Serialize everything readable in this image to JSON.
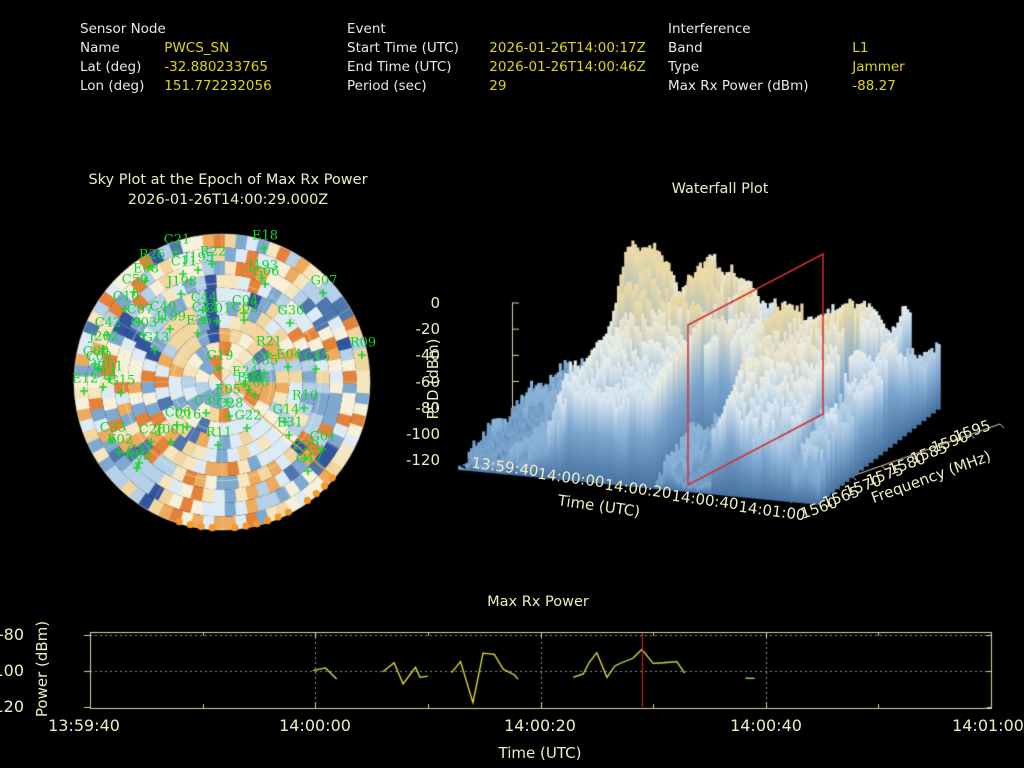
{
  "header": {
    "sensor": {
      "title": "Sensor Node",
      "rows": [
        {
          "label": "Name",
          "value": "PWCS_SN"
        },
        {
          "label": "Lat (deg)",
          "value": "-32.880233765"
        },
        {
          "label": "Lon (deg)",
          "value": "151.772232056"
        }
      ]
    },
    "event": {
      "title": "Event",
      "rows": [
        {
          "label": "Start Time (UTC)",
          "value": "2026-01-26T14:00:17Z"
        },
        {
          "label": "End Time (UTC)",
          "value": "2026-01-26T14:00:46Z"
        },
        {
          "label": "Period (sec)",
          "value": "29"
        }
      ]
    },
    "interference": {
      "title": "Interference",
      "rows": [
        {
          "label": "Band",
          "value": "L1"
        },
        {
          "label": "Type",
          "value": "Jammer"
        },
        {
          "label": "Max Rx Power (dBm)",
          "value": "-88.27"
        }
      ]
    }
  },
  "sky_plot": {
    "title": "Sky Plot at the Epoch of Max Rx Power",
    "epoch": "2026-01-26T14:00:29.000Z"
  },
  "waterfall": {
    "title": "Waterfall Plot",
    "psd_label": "PSD (dBm)",
    "time_label": "Time (UTC)",
    "freq_label": "Frequency (MHz)",
    "psd_ticks": [
      "0",
      "-20",
      "-40",
      "-60",
      "-80",
      "-100",
      "-120"
    ],
    "time_ticks": [
      "13:59:40",
      "14:00:00",
      "14:00:20",
      "14:00:40",
      "14:01:00"
    ],
    "freq_ticks": [
      "1560",
      "1565",
      "1570",
      "1575",
      "1580",
      "1585",
      "1590",
      "1595"
    ]
  },
  "chart_data": [
    {
      "type": "line",
      "title": "Max Rx Power",
      "xlabel": "Time (UTC)",
      "ylabel": "Power (dBm)",
      "x_tick_labels": [
        "13:59:40",
        "14:00:00",
        "14:00:20",
        "14:00:40",
        "14:01:00"
      ],
      "x_range_seconds": [
        0,
        80
      ],
      "yticks": [
        -80,
        -100,
        -120
      ],
      "ylim": [
        -120,
        -80
      ],
      "red_marker_seconds": 49,
      "red_marker_time": "14:00:29",
      "max_value_dbm": -88.27,
      "segments_t_dbm": [
        [
          [
            19.8,
            -100.1
          ],
          [
            20.9,
            -98.6
          ],
          [
            21.9,
            -104.7
          ]
        ],
        [
          [
            26.0,
            -100.7
          ],
          [
            27.0,
            -95.7
          ],
          [
            27.8,
            -107.5
          ],
          [
            28.9,
            -98.2
          ],
          [
            29.3,
            -103.8
          ],
          [
            30.0,
            -103.1
          ]
        ],
        [
          [
            32.1,
            -101.2
          ],
          [
            32.9,
            -95.1
          ],
          [
            34.0,
            -117.9
          ],
          [
            34.9,
            -90.4
          ],
          [
            35.9,
            -91.0
          ],
          [
            36.7,
            -99.3
          ],
          [
            37.7,
            -102.5
          ],
          [
            38.0,
            -104.9
          ]
        ],
        [
          [
            42.9,
            -103.8
          ],
          [
            43.8,
            -101.9
          ],
          [
            44.3,
            -95.7
          ],
          [
            45.0,
            -90.1
          ],
          [
            45.9,
            -103.8
          ],
          [
            46.6,
            -97.5
          ],
          [
            47.2,
            -95.7
          ],
          [
            48.2,
            -93.2
          ],
          [
            49.0,
            -88.3
          ],
          [
            50.0,
            -96.0
          ],
          [
            50.9,
            -95.7
          ],
          [
            52.1,
            -95.1
          ],
          [
            52.8,
            -101.5
          ]
        ],
        [
          [
            58.2,
            -104.2
          ],
          [
            59.0,
            -104.4
          ]
        ]
      ]
    },
    {
      "type": "surface",
      "title": "Waterfall Plot",
      "xlabel": "Time (UTC)",
      "ylabel": "Frequency (MHz)",
      "zlabel": "PSD (dBm)",
      "time_range": [
        "13:59:40",
        "14:01:00"
      ],
      "freq_range_mhz": [
        1560,
        1595
      ],
      "psd_range_dbm": [
        -120,
        0
      ],
      "slice_marker_time": "14:00:29"
    },
    {
      "type": "polar_skyplot",
      "title": "Sky Plot at the Epoch of Max Rx Power",
      "epoch": "2026-01-26T14:00:29.000Z",
      "satellites": [
        [
          "C21",
          177,
          240
        ],
        [
          "R26",
          152,
          255
        ],
        [
          "C11",
          184,
          262
        ],
        [
          "J195",
          199,
          258
        ],
        [
          "R22",
          213,
          252
        ],
        [
          "E08",
          146,
          269
        ],
        [
          "C50",
          135,
          280
        ],
        [
          "J198",
          182,
          282
        ],
        [
          "C10",
          126,
          297
        ],
        [
          "C44",
          204,
          298
        ],
        [
          "C34",
          205,
          308
        ],
        [
          "C01",
          218,
          309
        ],
        [
          "C07",
          140,
          310
        ],
        [
          "C40",
          163,
          307
        ],
        [
          "J199",
          171,
          317
        ],
        [
          "E25",
          199,
          321
        ],
        [
          "C42",
          108,
          323
        ],
        [
          "C03",
          144,
          323
        ],
        [
          "G13",
          156,
          338
        ],
        [
          "J202",
          104,
          337
        ],
        [
          "C60",
          96,
          352
        ],
        [
          "C02",
          99,
          357
        ],
        [
          "R01",
          110,
          367
        ],
        [
          "E12",
          85,
          379
        ],
        [
          "C14",
          104,
          375
        ],
        [
          "G15",
          122,
          381
        ],
        [
          "E18",
          265,
          236
        ],
        [
          "J193",
          263,
          266
        ],
        [
          "G06",
          266,
          272
        ],
        [
          "G07",
          324,
          281
        ],
        [
          "C04",
          245,
          301
        ],
        [
          "C62",
          245,
          308
        ],
        [
          "G30",
          291,
          311
        ],
        [
          "R21",
          269,
          342
        ],
        [
          "R09",
          363,
          343
        ],
        [
          "E04",
          289,
          355
        ],
        [
          "C45",
          317,
          357
        ],
        [
          "C35",
          265,
          361
        ],
        [
          "E24",
          245,
          372
        ],
        [
          "E03",
          250,
          378
        ],
        [
          "E06",
          256,
          383
        ],
        [
          "G19",
          220,
          356
        ],
        [
          "E05",
          228,
          390
        ],
        [
          "C39",
          207,
          401
        ],
        [
          "C28",
          230,
          404
        ],
        [
          "C06",
          178,
          413
        ],
        [
          "C16",
          188,
          415
        ],
        [
          "G22",
          248,
          416
        ],
        [
          "G14",
          286,
          410
        ],
        [
          "R10",
          305,
          396
        ],
        [
          "E31",
          290,
          423
        ],
        [
          "G01",
          323,
          437
        ],
        [
          "C29",
          306,
          446
        ],
        [
          "C26",
          152,
          430
        ],
        [
          "C33",
          113,
          428
        ],
        [
          "E02",
          120,
          440
        ],
        [
          "C31",
          140,
          451
        ],
        [
          "R02",
          138,
          456
        ],
        [
          "R11",
          219,
          433
        ],
        [
          "C47",
          309,
          459
        ],
        [
          "J001",
          172,
          430
        ]
      ],
      "jammer_line_azimuth_deg": 130.5,
      "detection_dots_azimuth_deg": [
        131,
        197
      ]
    }
  ],
  "colors": {
    "value_yellow": "#ddd41f",
    "label_white": "#e8e8e8",
    "cream_text": "#efecc4",
    "axis_cream": "#d8d5a2",
    "grid_grey": "#8f8f8f",
    "trace_yellow": "#e8e448",
    "marker_red": "#cc2121",
    "satellite_green": "#15d42c",
    "jammer_orange": "#f59a28"
  }
}
